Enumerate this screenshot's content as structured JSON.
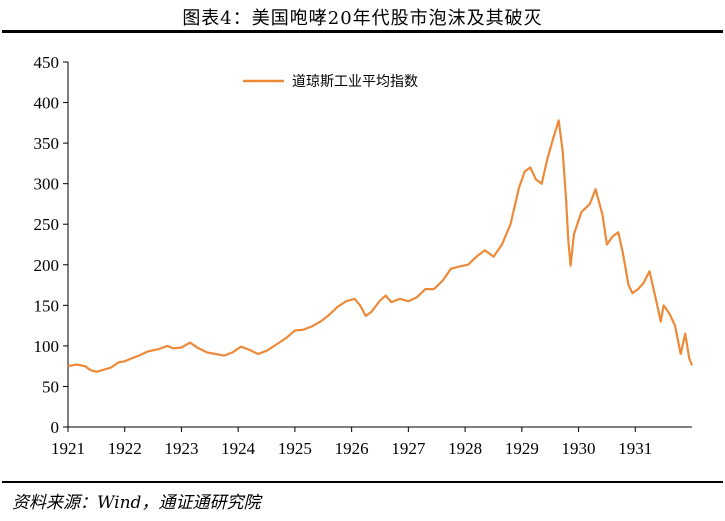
{
  "figure": {
    "title": "图表4：美国咆哮20年代股市泡沫及其破灭",
    "source": "资料来源：Wind，通证通研究院"
  },
  "colors": {
    "series": "#ED8A3A",
    "axis": "#000000"
  },
  "chart_data": {
    "type": "line",
    "title": "",
    "xlabel": "",
    "ylabel": "",
    "ylim": [
      0,
      450
    ],
    "yticks": [
      0,
      50,
      100,
      150,
      200,
      250,
      300,
      350,
      400,
      450
    ],
    "xlim": [
      1921.0,
      1932.0
    ],
    "xticks": [
      "1921",
      "1922",
      "1923",
      "1924",
      "1925",
      "1926",
      "1927",
      "1928",
      "1929",
      "1930",
      "1931"
    ],
    "grid": false,
    "legend": "top-left",
    "series": [
      {
        "name": "道琼斯工业平均指数",
        "points": [
          [
            1921.0,
            75
          ],
          [
            1921.15,
            77
          ],
          [
            1921.3,
            75
          ],
          [
            1921.4,
            70
          ],
          [
            1921.5,
            68
          ],
          [
            1921.6,
            70
          ],
          [
            1921.75,
            73
          ],
          [
            1921.9,
            80
          ],
          [
            1922.0,
            81
          ],
          [
            1922.1,
            84
          ],
          [
            1922.25,
            88
          ],
          [
            1922.4,
            93
          ],
          [
            1922.6,
            96
          ],
          [
            1922.75,
            100
          ],
          [
            1922.85,
            97
          ],
          [
            1923.0,
            98
          ],
          [
            1923.15,
            104
          ],
          [
            1923.3,
            97
          ],
          [
            1923.45,
            92
          ],
          [
            1923.6,
            90
          ],
          [
            1923.75,
            88
          ],
          [
            1923.9,
            92
          ],
          [
            1924.05,
            99
          ],
          [
            1924.2,
            95
          ],
          [
            1924.35,
            90
          ],
          [
            1924.5,
            94
          ],
          [
            1924.7,
            103
          ],
          [
            1924.85,
            110
          ],
          [
            1925.0,
            119
          ],
          [
            1925.15,
            120
          ],
          [
            1925.3,
            124
          ],
          [
            1925.45,
            130
          ],
          [
            1925.6,
            138
          ],
          [
            1925.75,
            148
          ],
          [
            1925.9,
            155
          ],
          [
            1926.05,
            158
          ],
          [
            1926.15,
            150
          ],
          [
            1926.25,
            137
          ],
          [
            1926.35,
            142
          ],
          [
            1926.5,
            156
          ],
          [
            1926.6,
            162
          ],
          [
            1926.7,
            154
          ],
          [
            1926.85,
            158
          ],
          [
            1927.0,
            155
          ],
          [
            1927.15,
            160
          ],
          [
            1927.3,
            170
          ],
          [
            1927.45,
            170
          ],
          [
            1927.6,
            180
          ],
          [
            1927.75,
            195
          ],
          [
            1927.9,
            198
          ],
          [
            1928.05,
            200
          ],
          [
            1928.2,
            210
          ],
          [
            1928.35,
            218
          ],
          [
            1928.5,
            210
          ],
          [
            1928.65,
            225
          ],
          [
            1928.8,
            250
          ],
          [
            1928.95,
            295
          ],
          [
            1929.05,
            315
          ],
          [
            1929.15,
            320
          ],
          [
            1929.25,
            305
          ],
          [
            1929.35,
            300
          ],
          [
            1929.45,
            330
          ],
          [
            1929.55,
            355
          ],
          [
            1929.65,
            378
          ],
          [
            1929.72,
            340
          ],
          [
            1929.78,
            280
          ],
          [
            1929.82,
            230
          ],
          [
            1929.86,
            199
          ],
          [
            1929.92,
            238
          ],
          [
            1930.05,
            265
          ],
          [
            1930.2,
            275
          ],
          [
            1930.3,
            293
          ],
          [
            1930.42,
            262
          ],
          [
            1930.5,
            225
          ],
          [
            1930.6,
            235
          ],
          [
            1930.7,
            240
          ],
          [
            1930.78,
            215
          ],
          [
            1930.88,
            175
          ],
          [
            1930.95,
            165
          ],
          [
            1931.05,
            170
          ],
          [
            1931.15,
            178
          ],
          [
            1931.25,
            192
          ],
          [
            1931.35,
            162
          ],
          [
            1931.45,
            130
          ],
          [
            1931.5,
            150
          ],
          [
            1931.6,
            140
          ],
          [
            1931.7,
            125
          ],
          [
            1931.8,
            90
          ],
          [
            1931.88,
            115
          ],
          [
            1931.95,
            85
          ],
          [
            1932.0,
            76
          ]
        ]
      }
    ]
  }
}
